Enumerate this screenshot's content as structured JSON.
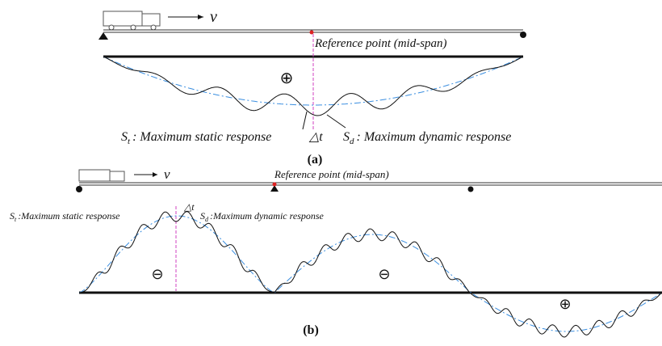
{
  "panel_a": {
    "velocity": "v",
    "reference_point": "Reference point (mid-span)",
    "sign": "⊕",
    "static_label": {
      "symbol": "S",
      "subscript": "t",
      "text": ": Maximum static response"
    },
    "delta_t": "△t",
    "dynamic_label": {
      "symbol": "S",
      "subscript": "d",
      "text": ": Maximum dynamic response"
    },
    "caption": "(a)"
  },
  "panel_b": {
    "velocity": "v",
    "reference_point": "Reference point (mid-span)",
    "static_label": {
      "symbol": "S",
      "subscript": "t",
      "text": ":Maximum static response"
    },
    "delta_t": "△t",
    "dynamic_label": {
      "symbol": "S",
      "subscript": "d",
      "text": ":Maximum dynamic response"
    },
    "signs": [
      "⊖",
      "⊖",
      "⊕"
    ],
    "caption": "(b)"
  }
}
